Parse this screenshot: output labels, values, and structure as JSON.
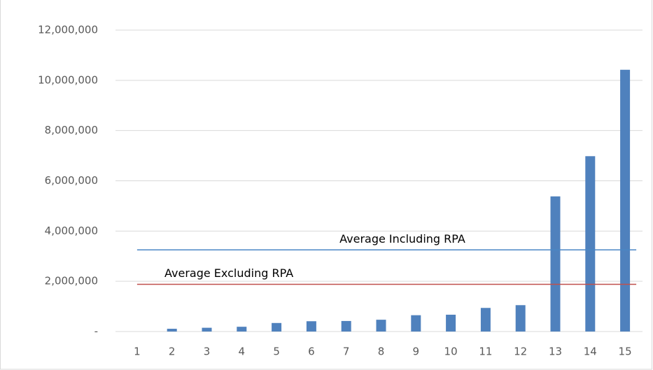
{
  "chart_data": {
    "type": "bar",
    "categories": [
      "1",
      "2",
      "3",
      "4",
      "5",
      "6",
      "7",
      "8",
      "9",
      "10",
      "11",
      "12",
      "13",
      "14",
      "15"
    ],
    "values": [
      0,
      110000,
      150000,
      190000,
      340000,
      410000,
      420000,
      470000,
      650000,
      670000,
      940000,
      1050000,
      5380000,
      6980000,
      10420000
    ],
    "color": "#4f81bd",
    "ylim": [
      0,
      12000000
    ],
    "yticks": [
      {
        "value": 0,
        "label": "-"
      },
      {
        "value": 2000000,
        "label": "2,000,000"
      },
      {
        "value": 4000000,
        "label": "4,000,000"
      },
      {
        "value": 6000000,
        "label": "6,000,000"
      },
      {
        "value": 8000000,
        "label": "8,000,000"
      },
      {
        "value": 10000000,
        "label": "10,000,000"
      },
      {
        "value": 12000000,
        "label": "12,000,000"
      }
    ],
    "grid": true,
    "reference_lines": [
      {
        "label": "Average Including RPA",
        "value": 3250000,
        "color": "#4a86c5"
      },
      {
        "label": "Average Excluding RPA",
        "value": 1880000,
        "color": "#c0504d"
      }
    ]
  }
}
